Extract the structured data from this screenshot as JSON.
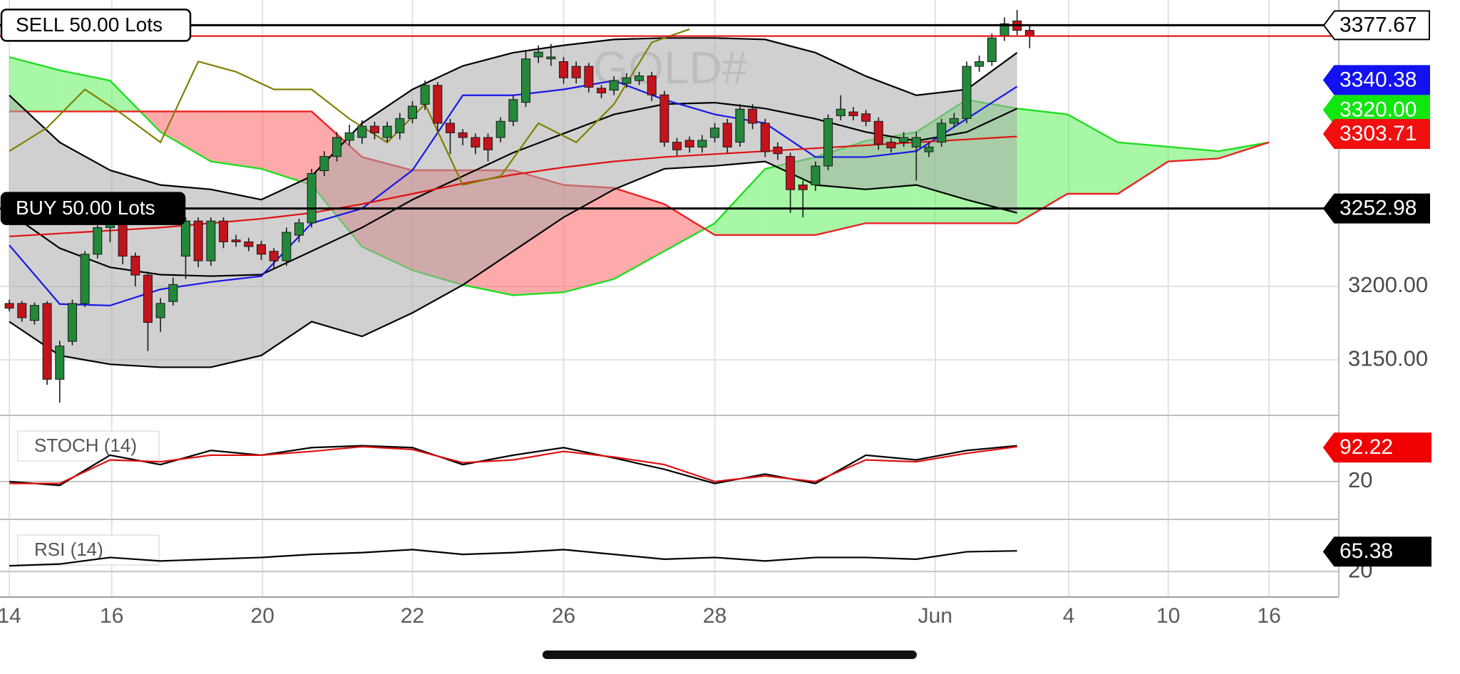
{
  "chart_data": [
    {
      "type": "candlestick",
      "watermark": "GOLD#",
      "x": [
        0,
        1,
        2,
        3,
        4,
        5,
        6,
        7,
        8,
        9,
        10,
        11,
        12,
        13,
        14,
        15,
        16,
        17,
        18,
        19,
        20,
        21,
        22,
        23,
        24,
        25,
        26,
        27,
        28,
        29,
        30,
        31,
        32,
        33,
        34,
        35,
        36,
        37,
        38,
        39,
        40,
        41,
        42,
        43,
        44,
        45,
        46,
        47,
        48,
        49,
        50,
        51,
        52,
        53,
        54,
        55,
        56,
        57,
        58,
        59,
        60,
        61,
        62,
        63,
        64,
        65,
        66,
        67,
        68,
        69,
        70,
        71,
        72,
        73,
        74,
        75,
        76,
        77,
        78,
        79,
        80,
        81
      ],
      "open": [
        3188.4,
        3188.4,
        3176.8,
        3188.4,
        3136.8,
        3162.6,
        3188.4,
        3221.9,
        3240.0,
        3243.2,
        3220.6,
        3207.7,
        3178.7,
        3189.7,
        3220.6,
        3244.5,
        3217.4,
        3244.5,
        3231.6,
        3230.3,
        3228.4,
        3223.9,
        3217.4,
        3234.8,
        3243.2,
        3278.7,
        3288.4,
        3299.4,
        3301.3,
        3309.0,
        3301.3,
        3304.5,
        3314.2,
        3323.9,
        3336.8,
        3311.0,
        3304.5,
        3301.3,
        3301.3,
        3301.3,
        3312.3,
        3325.2,
        3356.1,
        3354.8,
        3352.9,
        3349.7,
        3349.7,
        3334.8,
        3333.5,
        3338.1,
        3340.0,
        3343.2,
        3330.3,
        3298.1,
        3299.4,
        3294.8,
        3301.3,
        3311.0,
        3298.1,
        3320.6,
        3311.0,
        3294.8,
        3288.4,
        3269.0,
        3269.0,
        3281.9,
        3316.1,
        3318.7,
        3317.4,
        3312.3,
        3298.1,
        3298.1,
        3294.8,
        3291.6,
        3298.1,
        3311.0,
        3314.2,
        3349.7,
        3352.9,
        3370.3,
        3380.6,
        3374.2
      ],
      "high": [
        3191,
        3190,
        3189,
        3190,
        3163,
        3191,
        3224,
        3246,
        3248,
        3246,
        3223,
        3210,
        3192,
        3206,
        3247,
        3247,
        3247,
        3247,
        3235,
        3233,
        3231,
        3226,
        3240,
        3246,
        3280,
        3292,
        3305,
        3310,
        3313,
        3312,
        3312,
        3318,
        3326,
        3340,
        3339,
        3314,
        3307,
        3304,
        3304,
        3315,
        3330,
        3360,
        3364,
        3365,
        3356,
        3353,
        3352,
        3337,
        3343,
        3345,
        3346,
        3346,
        3333,
        3301,
        3302,
        3303,
        3311,
        3314,
        3324,
        3324,
        3314,
        3298,
        3291,
        3272,
        3285,
        3317,
        3330,
        3322,
        3320,
        3315,
        3301,
        3305,
        3305,
        3298,
        3314,
        3318,
        3353,
        3357,
        3372,
        3383,
        3388,
        3377
      ],
      "low": [
        3183,
        3176,
        3174,
        3133,
        3121,
        3160,
        3186,
        3219,
        3230,
        3215,
        3200,
        3156,
        3169,
        3187,
        3205,
        3213,
        3214,
        3226,
        3227,
        3224,
        3218,
        3212,
        3214,
        3230,
        3240,
        3275,
        3285,
        3296,
        3297,
        3300,
        3298,
        3300,
        3311,
        3320,
        3305,
        3290,
        3296,
        3290,
        3285,
        3298,
        3309,
        3322,
        3352,
        3350,
        3338,
        3338,
        3332,
        3328,
        3330,
        3335,
        3337,
        3326,
        3295,
        3289,
        3291,
        3291,
        3298,
        3291,
        3295,
        3307,
        3288,
        3286,
        3250,
        3247,
        3265,
        3279,
        3313,
        3313,
        3309,
        3293,
        3291,
        3295,
        3272,
        3288,
        3295,
        3308,
        3311,
        3346,
        3350,
        3367,
        3371,
        3362
      ],
      "close": [
        3185.2,
        3178.7,
        3187.1,
        3136.8,
        3159.4,
        3188.4,
        3221.9,
        3240.0,
        3243.2,
        3220.6,
        3207.7,
        3175.5,
        3188.4,
        3201.3,
        3244.5,
        3217.4,
        3244.5,
        3230.3,
        3230.3,
        3227.1,
        3221.9,
        3217.4,
        3236.8,
        3243.2,
        3276.8,
        3288.4,
        3301.3,
        3304.5,
        3309.0,
        3304.5,
        3309.0,
        3314.2,
        3322.6,
        3336.8,
        3311.0,
        3304.5,
        3301.3,
        3294.8,
        3292.9,
        3312.3,
        3327.1,
        3354.8,
        3359.4,
        3356.1,
        3341.9,
        3341.9,
        3335.5,
        3331.6,
        3340.0,
        3341.9,
        3343.2,
        3330.3,
        3298.1,
        3292.9,
        3294.8,
        3299.4,
        3307.7,
        3294.8,
        3320.6,
        3311.0,
        3291.6,
        3290.3,
        3265.8,
        3265.8,
        3281.9,
        3314.2,
        3320.6,
        3316.1,
        3312.3,
        3296.8,
        3294.2,
        3301.3,
        3301.3,
        3294.8,
        3311.0,
        3314.2,
        3349.7,
        3352.9,
        3369.0,
        3378.7,
        3374.2,
        3370.3
      ],
      "up_color": "#23883a",
      "down_color": "#c3131c",
      "xlim": [
        -0.74,
        105.54
      ],
      "xticks": [
        {
          "value": 0,
          "label": "14"
        },
        {
          "value": 8.13,
          "label": "16"
        },
        {
          "value": 20.1,
          "label": "20"
        },
        {
          "value": 32,
          "label": "22"
        },
        {
          "value": 44,
          "label": "26"
        },
        {
          "value": 56,
          "label": "28"
        },
        {
          "value": 73.5,
          "label": "Jun"
        },
        {
          "value": 84.1,
          "label": "4"
        },
        {
          "value": 92,
          "label": "10"
        },
        {
          "value": 100,
          "label": "16"
        }
      ],
      "ylim": [
        3112.26,
        3394.84
      ],
      "yticks": [
        {
          "value": 3150,
          "label": "3150.00"
        },
        {
          "value": 3200,
          "label": "3200.00"
        }
      ],
      "grid": true,
      "cloud": {
        "x": [
          0,
          4,
          8,
          12,
          16,
          20,
          24,
          28,
          32,
          36,
          40,
          44,
          48,
          52,
          56,
          60,
          64,
          68,
          72,
          76,
          80,
          84,
          88,
          92,
          96,
          100
        ],
        "span_a": [
          3356,
          3347,
          3340,
          3305,
          3285,
          3280,
          3269,
          3227,
          3211,
          3201,
          3194,
          3196,
          3205,
          3224,
          3243,
          3280,
          3288,
          3299,
          3305,
          3327,
          3321,
          3317,
          3298,
          3295,
          3292,
          3298
        ],
        "span_b": [
          3319,
          3319,
          3319,
          3319,
          3319,
          3319,
          3319,
          3288,
          3279,
          3279,
          3279,
          3269,
          3267,
          3256,
          3235,
          3235,
          3235,
          3243,
          3243,
          3243,
          3243,
          3263,
          3263,
          3285,
          3287,
          3298
        ],
        "span_a_color": "#22dd22",
        "span_b_color": "#ee2222",
        "up_fill": "#5ef05e",
        "down_fill": "#ff6464"
      },
      "band": {
        "x": [
          0,
          4,
          8,
          12,
          16,
          20,
          24,
          28,
          32,
          36,
          40,
          44,
          48,
          52,
          56,
          60,
          64,
          68,
          72,
          76,
          80
        ],
        "upper": [
          3330,
          3298,
          3279,
          3269,
          3266,
          3259,
          3275,
          3311,
          3334,
          3350,
          3359,
          3364,
          3368,
          3369,
          3369,
          3368,
          3359,
          3343,
          3330,
          3334,
          3359
        ],
        "lower": [
          3176,
          3153,
          3147,
          3145,
          3145,
          3153,
          3176,
          3166,
          3182,
          3201,
          3224,
          3247,
          3266,
          3280,
          3282,
          3285,
          3269,
          3266,
          3269,
          3259,
          3250
        ],
        "color": "#000000",
        "fill": "#a9a9a9"
      },
      "lines": [
        {
          "color": "#000000",
          "x": [
            0,
            4,
            8,
            12,
            16,
            20,
            24,
            28,
            32,
            36,
            40,
            44,
            48,
            52,
            56,
            60,
            64,
            68,
            72,
            76,
            80
          ],
          "values": [
            3250,
            3226,
            3213,
            3208,
            3207,
            3208,
            3224,
            3240,
            3259,
            3275,
            3291,
            3304,
            3317,
            3324,
            3325,
            3321,
            3314,
            3305,
            3299,
            3305,
            3321
          ]
        },
        {
          "color": "#1717e6",
          "x": [
            0,
            4,
            8,
            12,
            16,
            20,
            24,
            28,
            32,
            36,
            40,
            44,
            48,
            52,
            56,
            60,
            64,
            68,
            72,
            76,
            80
          ],
          "values": [
            3228,
            3188,
            3187,
            3198,
            3203,
            3207,
            3243,
            3253,
            3279,
            3330,
            3330,
            3334,
            3340,
            3327,
            3317,
            3311,
            3288,
            3288,
            3292,
            3314,
            3336
          ]
        },
        {
          "color": "#e01010",
          "x": [
            0,
            4,
            8,
            12,
            16,
            20,
            24,
            28,
            32,
            36,
            40,
            44,
            48,
            52,
            56,
            60,
            64,
            68,
            72,
            76,
            80
          ],
          "values": [
            3234,
            3236,
            3238,
            3240,
            3243,
            3246,
            3250,
            3256,
            3263,
            3270,
            3276,
            3281,
            3285,
            3288,
            3290,
            3292,
            3294,
            3296,
            3298,
            3300,
            3302
          ]
        },
        {
          "color": "#808000",
          "x": [
            0,
            3,
            6,
            9,
            12,
            15,
            18,
            21,
            24,
            27,
            30,
            33,
            36,
            39,
            42,
            45,
            48,
            51,
            54
          ],
          "values": [
            3292,
            3308,
            3334,
            3317,
            3298,
            3353,
            3346,
            3334,
            3334,
            3314,
            3298,
            3324,
            3269,
            3275,
            3311,
            3298,
            3324,
            3366,
            3375
          ]
        }
      ],
      "hlines": [
        {
          "value": 3370.3,
          "color": "#e00000"
        }
      ],
      "orders": [
        {
          "label": "SELL 50.00 Lots",
          "price": 3377.67,
          "side": "sell"
        },
        {
          "label": "BUY 50.00 Lots",
          "price": 3252.98,
          "side": "buy"
        }
      ],
      "price_tags": [
        {
          "value": 3340.38,
          "color": "#1212f0"
        },
        {
          "value": 3320,
          "label": "3320.00",
          "color": "#11e611"
        },
        {
          "value": 3303.71,
          "color": "#f01010"
        }
      ]
    },
    {
      "type": "line",
      "title": "STOCH (14)",
      "x": [
        0,
        4,
        8,
        12,
        16,
        20,
        24,
        28,
        32,
        36,
        40,
        44,
        48,
        52,
        56,
        60,
        64,
        68,
        72,
        76,
        80
      ],
      "series": [
        {
          "color": "#000000",
          "values": [
            20,
            12,
            76,
            56,
            86,
            76,
            92,
            96,
            92,
            56,
            76,
            92,
            70,
            46,
            16,
            36,
            16,
            76,
            66,
            86,
            96
          ]
        },
        {
          "color": "#e01010",
          "values": [
            16,
            16,
            66,
            62,
            76,
            76,
            84,
            94,
            88,
            60,
            66,
            84,
            72,
            56,
            20,
            32,
            20,
            66,
            62,
            80,
            94
          ]
        }
      ],
      "ylim": [
        -60.2,
        160.4
      ],
      "yticks": [
        20
      ],
      "marker": {
        "value": 92.22,
        "color": "#f00000"
      }
    },
    {
      "type": "line",
      "title": "RSI (14)",
      "x": [
        0,
        4,
        8,
        12,
        16,
        20,
        24,
        28,
        32,
        36,
        40,
        44,
        48,
        52,
        56,
        60,
        64,
        68,
        72,
        76,
        80
      ],
      "series": [
        {
          "color": "#000000",
          "values": [
            33,
            37,
            52,
            44,
            48,
            52,
            59,
            63,
            70,
            59,
            63,
            70,
            59,
            48,
            52,
            44,
            52,
            52,
            48,
            65,
            67
          ]
        }
      ],
      "ylim": [
        -38.3,
        138.8
      ],
      "yticks": [
        20
      ],
      "marker": {
        "value": 65.38,
        "color": "#000000"
      }
    }
  ]
}
